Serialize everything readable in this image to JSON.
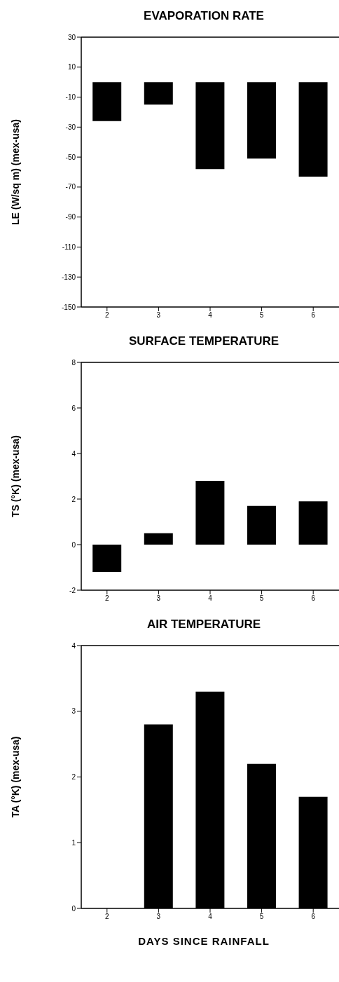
{
  "chart_data": [
    {
      "type": "bar",
      "title": "EVAPORATION RATE",
      "ylabel": "LE  (W/sq  m)  (mex-usa)",
      "categories": [
        "2",
        "3",
        "4",
        "5",
        "6"
      ],
      "values": [
        -26,
        -15,
        -58,
        -51,
        -63
      ],
      "color": "#000000",
      "ylim": [
        -150,
        30
      ],
      "yticks": [
        -150,
        -130,
        -110,
        -90,
        -70,
        -50,
        -30,
        -10,
        10,
        30
      ]
    },
    {
      "type": "bar",
      "title": "SURFACE TEMPERATURE",
      "ylabel": "TS  (°K)  (mex-usa)",
      "categories": [
        "2",
        "3",
        "4",
        "5",
        "6"
      ],
      "values": [
        -1.2,
        0.5,
        2.8,
        1.7,
        1.9
      ],
      "color": "#000000",
      "ylim": [
        -2,
        8
      ],
      "yticks": [
        -2,
        0,
        2,
        4,
        6,
        8
      ]
    },
    {
      "type": "bar",
      "title": "AIR TEMPERATURE",
      "ylabel": "TA  (°K)  (mex-usa)",
      "xlabel": "DAYS SINCE RAINFALL",
      "categories": [
        "2",
        "3",
        "4",
        "5",
        "6"
      ],
      "values": [
        0,
        2.8,
        3.3,
        2.2,
        1.7
      ],
      "color": "#000000",
      "ylim": [
        0,
        4
      ],
      "yticks": [
        0,
        1,
        2,
        3,
        4
      ]
    }
  ]
}
